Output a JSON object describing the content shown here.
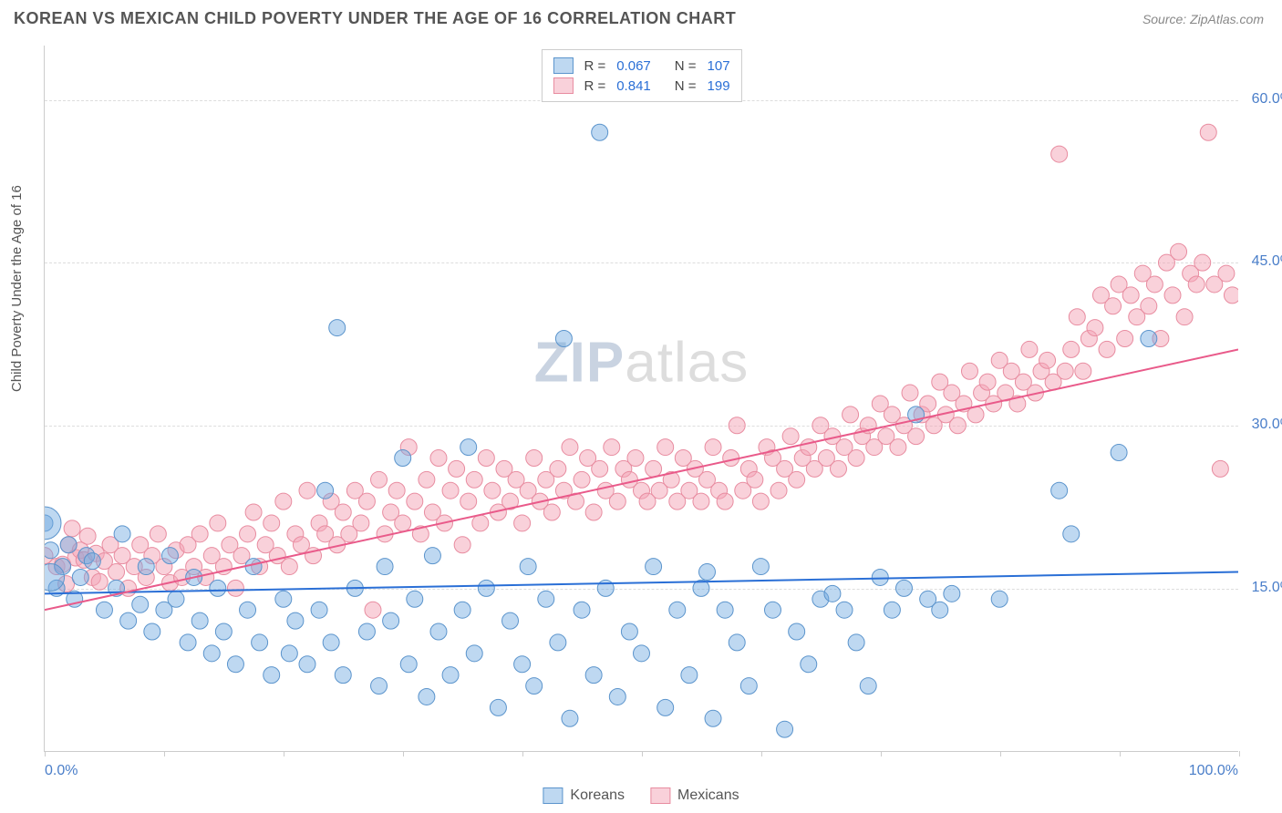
{
  "title": "KOREAN VS MEXICAN CHILD POVERTY UNDER THE AGE OF 16 CORRELATION CHART",
  "source_label": "Source:",
  "source_name": "ZipAtlas.com",
  "y_axis_label": "Child Poverty Under the Age of 16",
  "watermark": {
    "head": "ZIP",
    "tail": "atlas"
  },
  "chart": {
    "type": "scatter",
    "background_color": "#ffffff",
    "grid_color": "#dddddd",
    "axis_color": "#cccccc",
    "text_color": "#555555",
    "tick_label_color": "#4a7ec9",
    "label_fontsize": 15,
    "tick_fontsize": 16,
    "xlim": [
      0,
      100
    ],
    "ylim": [
      0,
      65
    ],
    "x_tick_positions": [
      0,
      10,
      20,
      30,
      40,
      50,
      60,
      70,
      80,
      90,
      100
    ],
    "x_tick_labels": {
      "0": "0.0%",
      "100": "100.0%"
    },
    "y_grid_positions": [
      15,
      30,
      45,
      60
    ],
    "y_tick_labels": {
      "15": "15.0%",
      "30": "30.0%",
      "45": "45.0%",
      "60": "60.0%"
    },
    "marker_radius": 9,
    "marker_opacity": 0.55,
    "line_width": 2,
    "series": [
      {
        "name": "Koreans",
        "label": "Koreans",
        "color": "#6fa8e0",
        "fill": "rgba(111,168,224,0.45)",
        "stroke": "#5b94cc",
        "line_color": "#2a6fd6",
        "R": "0.067",
        "N": "107",
        "trend": {
          "x1": 0,
          "y1": 14.5,
          "x2": 100,
          "y2": 16.5
        },
        "points": [
          [
            0,
            21
          ],
          [
            0.5,
            18.5
          ],
          [
            1,
            15
          ],
          [
            1.5,
            17
          ],
          [
            2,
            19
          ],
          [
            2.5,
            14
          ],
          [
            3,
            16
          ],
          [
            3.5,
            18
          ],
          [
            4,
            17.5
          ],
          [
            5,
            13
          ],
          [
            6,
            15
          ],
          [
            6.5,
            20
          ],
          [
            7,
            12
          ],
          [
            8,
            13.5
          ],
          [
            8.5,
            17
          ],
          [
            9,
            11
          ],
          [
            10,
            13
          ],
          [
            10.5,
            18
          ],
          [
            11,
            14
          ],
          [
            12,
            10
          ],
          [
            12.5,
            16
          ],
          [
            13,
            12
          ],
          [
            14,
            9
          ],
          [
            14.5,
            15
          ],
          [
            15,
            11
          ],
          [
            16,
            8
          ],
          [
            17,
            13
          ],
          [
            17.5,
            17
          ],
          [
            18,
            10
          ],
          [
            19,
            7
          ],
          [
            20,
            14
          ],
          [
            20.5,
            9
          ],
          [
            21,
            12
          ],
          [
            22,
            8
          ],
          [
            23,
            13
          ],
          [
            23.5,
            24
          ],
          [
            24,
            10
          ],
          [
            24.5,
            39
          ],
          [
            25,
            7
          ],
          [
            26,
            15
          ],
          [
            27,
            11
          ],
          [
            28,
            6
          ],
          [
            28.5,
            17
          ],
          [
            29,
            12
          ],
          [
            30,
            27
          ],
          [
            30.5,
            8
          ],
          [
            31,
            14
          ],
          [
            32,
            5
          ],
          [
            32.5,
            18
          ],
          [
            33,
            11
          ],
          [
            34,
            7
          ],
          [
            35,
            13
          ],
          [
            35.5,
            28
          ],
          [
            36,
            9
          ],
          [
            37,
            15
          ],
          [
            38,
            4
          ],
          [
            39,
            12
          ],
          [
            40,
            8
          ],
          [
            40.5,
            17
          ],
          [
            41,
            6
          ],
          [
            42,
            14
          ],
          [
            43,
            10
          ],
          [
            43.5,
            38
          ],
          [
            44,
            3
          ],
          [
            45,
            13
          ],
          [
            46,
            7
          ],
          [
            46.5,
            57
          ],
          [
            47,
            15
          ],
          [
            48,
            5
          ],
          [
            49,
            11
          ],
          [
            50,
            9
          ],
          [
            51,
            17
          ],
          [
            52,
            4
          ],
          [
            53,
            13
          ],
          [
            54,
            7
          ],
          [
            55,
            15
          ],
          [
            55.5,
            16.5
          ],
          [
            56,
            3
          ],
          [
            57,
            13
          ],
          [
            58,
            10
          ],
          [
            59,
            6
          ],
          [
            60,
            17
          ],
          [
            61,
            13
          ],
          [
            62,
            2
          ],
          [
            63,
            11
          ],
          [
            64,
            8
          ],
          [
            65,
            14
          ],
          [
            66,
            14.5
          ],
          [
            67,
            13
          ],
          [
            68,
            10
          ],
          [
            69,
            6
          ],
          [
            70,
            16
          ],
          [
            71,
            13
          ],
          [
            72,
            15
          ],
          [
            73,
            31
          ],
          [
            74,
            14
          ],
          [
            75,
            13
          ],
          [
            76,
            14.5
          ],
          [
            80,
            14
          ],
          [
            85,
            24
          ],
          [
            86,
            20
          ],
          [
            90,
            27.5
          ],
          [
            92.5,
            38
          ]
        ],
        "large_points": [
          [
            0,
            21,
            18
          ],
          [
            0.5,
            16,
            15
          ]
        ]
      },
      {
        "name": "Mexicans",
        "label": "Mexicans",
        "color": "#f4a3b5",
        "fill": "rgba(244,163,181,0.5)",
        "stroke": "#e88ca0",
        "line_color": "#e95a8a",
        "R": "0.841",
        "N": "199",
        "trend": {
          "x1": 0,
          "y1": 13,
          "x2": 100,
          "y2": 37
        },
        "points": [
          [
            0,
            18
          ],
          [
            1,
            17
          ],
          [
            1.5,
            17.2
          ],
          [
            1.8,
            15.4
          ],
          [
            2,
            19
          ],
          [
            2.3,
            20.5
          ],
          [
            2.6,
            17.8
          ],
          [
            3,
            18.5
          ],
          [
            3.3,
            17.6
          ],
          [
            3.6,
            19.8
          ],
          [
            4,
            16
          ],
          [
            4.3,
            18.2
          ],
          [
            4.6,
            15.6
          ],
          [
            5,
            17.5
          ],
          [
            5.5,
            19
          ],
          [
            6,
            16.5
          ],
          [
            6.5,
            18
          ],
          [
            7,
            15
          ],
          [
            7.5,
            17
          ],
          [
            8,
            19
          ],
          [
            8.5,
            16
          ],
          [
            9,
            18
          ],
          [
            9.5,
            20
          ],
          [
            10,
            17
          ],
          [
            10.5,
            15.5
          ],
          [
            11,
            18.5
          ],
          [
            11.5,
            16
          ],
          [
            12,
            19
          ],
          [
            12.5,
            17
          ],
          [
            13,
            20
          ],
          [
            13.5,
            16
          ],
          [
            14,
            18
          ],
          [
            14.5,
            21
          ],
          [
            15,
            17
          ],
          [
            15.5,
            19
          ],
          [
            16,
            15
          ],
          [
            16.5,
            18
          ],
          [
            17,
            20
          ],
          [
            17.5,
            22
          ],
          [
            18,
            17
          ],
          [
            18.5,
            19
          ],
          [
            19,
            21
          ],
          [
            19.5,
            18
          ],
          [
            20,
            23
          ],
          [
            20.5,
            17
          ],
          [
            21,
            20
          ],
          [
            21.5,
            19
          ],
          [
            22,
            24
          ],
          [
            22.5,
            18
          ],
          [
            23,
            21
          ],
          [
            23.5,
            20
          ],
          [
            24,
            23
          ],
          [
            24.5,
            19
          ],
          [
            25,
            22
          ],
          [
            25.5,
            20
          ],
          [
            26,
            24
          ],
          [
            26.5,
            21
          ],
          [
            27,
            23
          ],
          [
            27.5,
            13
          ],
          [
            28,
            25
          ],
          [
            28.5,
            20
          ],
          [
            29,
            22
          ],
          [
            29.5,
            24
          ],
          [
            30,
            21
          ],
          [
            30.5,
            28
          ],
          [
            31,
            23
          ],
          [
            31.5,
            20
          ],
          [
            32,
            25
          ],
          [
            32.5,
            22
          ],
          [
            33,
            27
          ],
          [
            33.5,
            21
          ],
          [
            34,
            24
          ],
          [
            34.5,
            26
          ],
          [
            35,
            19
          ],
          [
            35.5,
            23
          ],
          [
            36,
            25
          ],
          [
            36.5,
            21
          ],
          [
            37,
            27
          ],
          [
            37.5,
            24
          ],
          [
            38,
            22
          ],
          [
            38.5,
            26
          ],
          [
            39,
            23
          ],
          [
            39.5,
            25
          ],
          [
            40,
            21
          ],
          [
            40.5,
            24
          ],
          [
            41,
            27
          ],
          [
            41.5,
            23
          ],
          [
            42,
            25
          ],
          [
            42.5,
            22
          ],
          [
            43,
            26
          ],
          [
            43.5,
            24
          ],
          [
            44,
            28
          ],
          [
            44.5,
            23
          ],
          [
            45,
            25
          ],
          [
            45.5,
            27
          ],
          [
            46,
            22
          ],
          [
            46.5,
            26
          ],
          [
            47,
            24
          ],
          [
            47.5,
            28
          ],
          [
            48,
            23
          ],
          [
            48.5,
            26
          ],
          [
            49,
            25
          ],
          [
            49.5,
            27
          ],
          [
            50,
            24
          ],
          [
            50.5,
            23
          ],
          [
            51,
            26
          ],
          [
            51.5,
            24
          ],
          [
            52,
            28
          ],
          [
            52.5,
            25
          ],
          [
            53,
            23
          ],
          [
            53.5,
            27
          ],
          [
            54,
            24
          ],
          [
            54.5,
            26
          ],
          [
            55,
            23
          ],
          [
            55.5,
            25
          ],
          [
            56,
            28
          ],
          [
            56.5,
            24
          ],
          [
            57,
            23
          ],
          [
            57.5,
            27
          ],
          [
            58,
            30
          ],
          [
            58.5,
            24
          ],
          [
            59,
            26
          ],
          [
            59.5,
            25
          ],
          [
            60,
            23
          ],
          [
            60.5,
            28
          ],
          [
            61,
            27
          ],
          [
            61.5,
            24
          ],
          [
            62,
            26
          ],
          [
            62.5,
            29
          ],
          [
            63,
            25
          ],
          [
            63.5,
            27
          ],
          [
            64,
            28
          ],
          [
            64.5,
            26
          ],
          [
            65,
            30
          ],
          [
            65.5,
            27
          ],
          [
            66,
            29
          ],
          [
            66.5,
            26
          ],
          [
            67,
            28
          ],
          [
            67.5,
            31
          ],
          [
            68,
            27
          ],
          [
            68.5,
            29
          ],
          [
            69,
            30
          ],
          [
            69.5,
            28
          ],
          [
            70,
            32
          ],
          [
            70.5,
            29
          ],
          [
            71,
            31
          ],
          [
            71.5,
            28
          ],
          [
            72,
            30
          ],
          [
            72.5,
            33
          ],
          [
            73,
            29
          ],
          [
            73.5,
            31
          ],
          [
            74,
            32
          ],
          [
            74.5,
            30
          ],
          [
            75,
            34
          ],
          [
            75.5,
            31
          ],
          [
            76,
            33
          ],
          [
            76.5,
            30
          ],
          [
            77,
            32
          ],
          [
            77.5,
            35
          ],
          [
            78,
            31
          ],
          [
            78.5,
            33
          ],
          [
            79,
            34
          ],
          [
            79.5,
            32
          ],
          [
            80,
            36
          ],
          [
            80.5,
            33
          ],
          [
            81,
            35
          ],
          [
            81.5,
            32
          ],
          [
            82,
            34
          ],
          [
            82.5,
            37
          ],
          [
            83,
            33
          ],
          [
            83.5,
            35
          ],
          [
            84,
            36
          ],
          [
            84.5,
            34
          ],
          [
            85,
            55
          ],
          [
            85.5,
            35
          ],
          [
            86,
            37
          ],
          [
            86.5,
            40
          ],
          [
            87,
            35
          ],
          [
            87.5,
            38
          ],
          [
            88,
            39
          ],
          [
            88.5,
            42
          ],
          [
            89,
            37
          ],
          [
            89.5,
            41
          ],
          [
            90,
            43
          ],
          [
            90.5,
            38
          ],
          [
            91,
            42
          ],
          [
            91.5,
            40
          ],
          [
            92,
            44
          ],
          [
            92.5,
            41
          ],
          [
            93,
            43
          ],
          [
            93.5,
            38
          ],
          [
            94,
            45
          ],
          [
            94.5,
            42
          ],
          [
            95,
            46
          ],
          [
            95.5,
            40
          ],
          [
            96,
            44
          ],
          [
            96.5,
            43
          ],
          [
            97,
            45
          ],
          [
            97.5,
            57
          ],
          [
            98,
            43
          ],
          [
            98.5,
            26
          ],
          [
            99,
            44
          ],
          [
            99.5,
            42
          ]
        ]
      }
    ]
  },
  "legend_stats": {
    "R_label": "R =",
    "N_label": "N ="
  },
  "bottom_legend": {
    "items": [
      "Koreans",
      "Mexicans"
    ]
  }
}
